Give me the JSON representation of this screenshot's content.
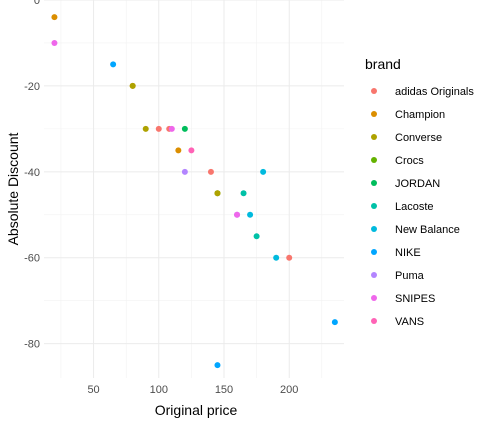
{
  "chart_data": {
    "type": "scatter",
    "title": "",
    "xlabel": "Original price",
    "ylabel": "Absolute Discount",
    "xlim": [
      12,
      242
    ],
    "ylim": [
      -88,
      0
    ],
    "xticks": [
      50,
      100,
      150,
      200
    ],
    "xminor": [
      25,
      75,
      125,
      175,
      225
    ],
    "yticks": [
      0,
      -20,
      -40,
      -60,
      -80
    ],
    "yminor": [
      -10,
      -30,
      -50,
      -70
    ],
    "grid": true,
    "legend": {
      "title": "brand",
      "placement": "right",
      "entries": [
        {
          "name": "adidas Originals",
          "color": "#F8766D"
        },
        {
          "name": "Champion",
          "color": "#DB8E00"
        },
        {
          "name": "Converse",
          "color": "#AEA200"
        },
        {
          "name": "Crocs",
          "color": "#64B200"
        },
        {
          "name": "JORDAN",
          "color": "#00BD5C"
        },
        {
          "name": "Lacoste",
          "color": "#00C1A7"
        },
        {
          "name": "New Balance",
          "color": "#00BADE"
        },
        {
          "name": "NIKE",
          "color": "#00A6FF"
        },
        {
          "name": "Puma",
          "color": "#B385FF"
        },
        {
          "name": "SNIPES",
          "color": "#EF67EB"
        },
        {
          "name": "VANS",
          "color": "#FF63B6"
        }
      ]
    },
    "points": [
      {
        "brand": "Champion",
        "x": 20,
        "y": -4
      },
      {
        "brand": "SNIPES",
        "x": 20,
        "y": -10
      },
      {
        "brand": "NIKE",
        "x": 65,
        "y": -15
      },
      {
        "brand": "Champion",
        "x": 80,
        "y": -20
      },
      {
        "brand": "Converse",
        "x": 80,
        "y": -20
      },
      {
        "brand": "Converse",
        "x": 90,
        "y": -30
      },
      {
        "brand": "adidas Originals",
        "x": 100,
        "y": -30
      },
      {
        "brand": "adidas Originals",
        "x": 108,
        "y": -30
      },
      {
        "brand": "SNIPES",
        "x": 110,
        "y": -30
      },
      {
        "brand": "JORDAN",
        "x": 120,
        "y": -30
      },
      {
        "brand": "Champion",
        "x": 115,
        "y": -35
      },
      {
        "brand": "VANS",
        "x": 125,
        "y": -35
      },
      {
        "brand": "Puma",
        "x": 120,
        "y": -40
      },
      {
        "brand": "adidas Originals",
        "x": 140,
        "y": -40
      },
      {
        "brand": "New Balance",
        "x": 180,
        "y": -40
      },
      {
        "brand": "Crocs",
        "x": 145,
        "y": -45
      },
      {
        "brand": "Converse",
        "x": 145,
        "y": -45
      },
      {
        "brand": "Lacoste",
        "x": 165,
        "y": -45
      },
      {
        "brand": "Puma",
        "x": 160,
        "y": -50
      },
      {
        "brand": "SNIPES",
        "x": 160,
        "y": -50
      },
      {
        "brand": "New Balance",
        "x": 170,
        "y": -50
      },
      {
        "brand": "Lacoste",
        "x": 175,
        "y": -55
      },
      {
        "brand": "New Balance",
        "x": 190,
        "y": -60
      },
      {
        "brand": "adidas Originals",
        "x": 200,
        "y": -60
      },
      {
        "brand": "NIKE",
        "x": 235,
        "y": -75
      },
      {
        "brand": "NIKE",
        "x": 145,
        "y": -85
      }
    ]
  }
}
